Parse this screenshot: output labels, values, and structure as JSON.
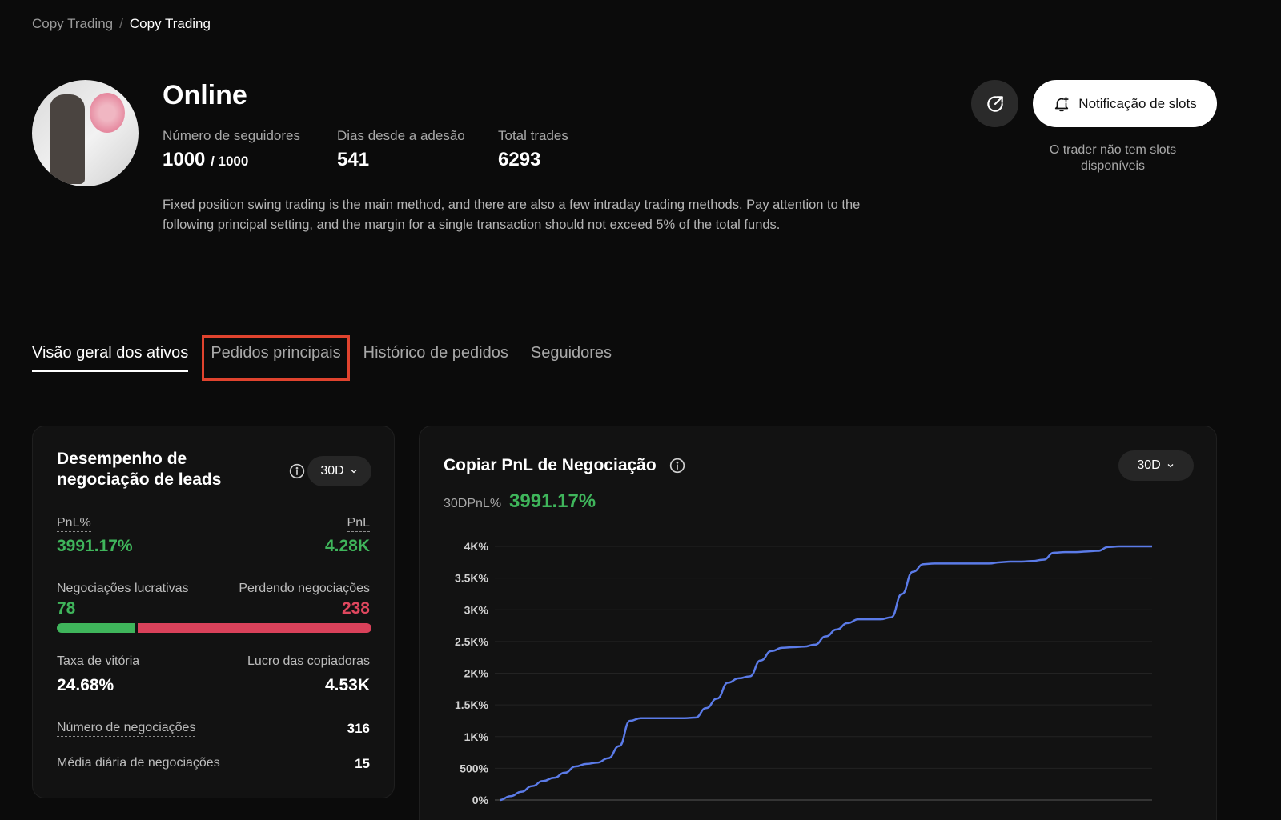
{
  "breadcrumb": [
    "Copy Trading",
    "Copy Trading"
  ],
  "profile": {
    "name": "Online",
    "followers_label": "Número de seguidores",
    "followers_value": "1000",
    "followers_max": "/ 1000",
    "days_label": "Dias desde a adesão",
    "days_value": "541",
    "trades_label": "Total trades",
    "trades_value": "6293",
    "description": "Fixed position swing trading is the main method, and there are also a few intraday trading methods. Pay attention to the following principal setting, and the margin for a single transaction should not exceed 5% of the total funds."
  },
  "actions": {
    "notify_label": "Notificação de slots",
    "no_slots_text": "O trader não tem slots disponíveis"
  },
  "tabs": [
    {
      "label": "Visão geral dos ativos",
      "active": true
    },
    {
      "label": "Pedidos principais",
      "highlighted": true
    },
    {
      "label": "Histórico de pedidos"
    },
    {
      "label": "Seguidores"
    }
  ],
  "performance": {
    "title": "Desempenho de negociação de leads",
    "period": "30D",
    "pnl_pct_label": "PnL%",
    "pnl_pct_value": "3991.17%",
    "pnl_label": "PnL",
    "pnl_value": "4.28K",
    "win_trades_label": "Negociações lucrativas",
    "win_trades_value": "78",
    "loss_trades_label": "Perdendo negociações",
    "loss_trades_value": "238",
    "win_rate_label": "Taxa de vitória",
    "win_rate_value": "24.68%",
    "copier_profit_label": "Lucro das copiadoras",
    "copier_profit_value": "4.53K",
    "num_trades_label": "Número de negociações",
    "num_trades_value": "316",
    "daily_avg_label": "Média diária de negociações",
    "daily_avg_value": "15",
    "colors": {
      "green": "#3fb55b",
      "red": "#d9415a"
    }
  },
  "copy_pnl": {
    "title": "Copiar PnL de Negociação",
    "period": "30D",
    "summary_label": "30DPnL%",
    "summary_value": "3991.17%"
  },
  "chart_data": {
    "type": "line",
    "y_ticks": [
      "0%",
      "500%",
      "1K%",
      "1.5K%",
      "2K%",
      "2.5K%",
      "3K%",
      "3.5K%",
      "4K%"
    ],
    "ylim": [
      0,
      4000
    ],
    "color": "#5b7be8",
    "x": [
      0,
      1,
      2,
      3,
      4,
      5,
      6,
      7,
      8,
      9,
      10,
      11,
      12,
      13,
      14,
      15,
      16,
      17,
      18,
      19,
      20,
      21,
      22,
      23,
      24,
      25,
      26,
      27,
      28,
      29,
      30,
      31,
      32,
      33,
      34,
      35,
      36,
      37,
      38,
      39,
      40,
      41,
      42,
      43,
      44,
      45,
      46,
      47,
      48,
      49,
      50,
      51,
      52,
      53,
      54,
      55,
      56,
      57,
      58,
      59,
      60
    ],
    "values": [
      0,
      60,
      130,
      220,
      300,
      350,
      430,
      530,
      570,
      590,
      660,
      850,
      1250,
      1290,
      1290,
      1290,
      1290,
      1290,
      1300,
      1450,
      1600,
      1850,
      1920,
      1950,
      2200,
      2350,
      2400,
      2410,
      2420,
      2450,
      2580,
      2690,
      2790,
      2850,
      2850,
      2850,
      2880,
      3250,
      3600,
      3720,
      3730,
      3730,
      3730,
      3730,
      3730,
      3730,
      3750,
      3760,
      3760,
      3770,
      3790,
      3900,
      3910,
      3910,
      3920,
      3930,
      3990,
      4000,
      4000,
      4000,
      4000
    ]
  }
}
